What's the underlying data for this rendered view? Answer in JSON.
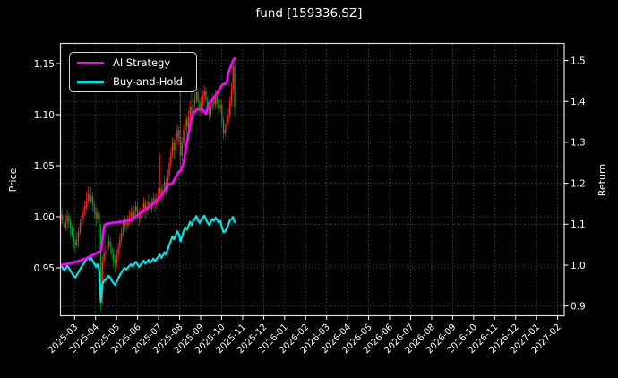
{
  "window": {
    "title": "fund [159336.SZ]"
  },
  "chart_data": {
    "type": "candlestick+line",
    "title": "fund [159336.SZ]",
    "ylabel_left": "Price",
    "ylabel_right": "Return",
    "grid": true,
    "legend_position": "upper-left",
    "x_tick_labels": [
      "2025-03",
      "2025-04",
      "2025-05",
      "2025-06",
      "2025-07",
      "2025-08",
      "2025-09",
      "2025-10",
      "2025-11",
      "2025-12",
      "2026-01",
      "2026-02",
      "2026-03",
      "2026-04",
      "2026-05",
      "2026-06",
      "2026-07",
      "2026-08",
      "2026-09",
      "2026-10",
      "2026-11",
      "2026-12",
      "2027-01",
      "2027-02"
    ],
    "price_ticks": [
      1.15,
      1.1,
      1.05,
      1.0,
      0.95
    ],
    "return_ticks": [
      1.5,
      1.4,
      1.3,
      1.2,
      1.1,
      1.0,
      0.9
    ],
    "ylim_left": [
      0.903,
      1.169
    ],
    "ylim_right": [
      0.876,
      1.544
    ],
    "colors": {
      "background": "#000000",
      "text": "#ffffff",
      "grid": "#8f8f8f",
      "spine": "#e0e0e0",
      "candle_up": "#fb2c2c",
      "candle_down": "#00a327",
      "ai_strategy": "#ff00ff",
      "buy_and_hold": "#00e5e6"
    },
    "candles_ohlc": [
      [
        0.998,
        1.006,
        0.993,
        1.002
      ],
      [
        1.002,
        1.009,
        0.992,
        0.996
      ],
      [
        0.996,
        1.001,
        0.981,
        0.989
      ],
      [
        0.989,
        1.003,
        0.986,
        0.994
      ],
      [
        0.994,
        1.007,
        0.987,
        1.001
      ],
      [
        1.001,
        1.004,
        0.989,
        0.995
      ],
      [
        0.995,
        0.999,
        0.98,
        0.988
      ],
      [
        0.988,
        0.992,
        0.979,
        0.982
      ],
      [
        0.982,
        0.991,
        0.968,
        0.976
      ],
      [
        0.976,
        0.979,
        0.965,
        0.972
      ],
      [
        0.972,
        0.985,
        0.969,
        0.978
      ],
      [
        0.978,
        0.989,
        0.97,
        0.985
      ],
      [
        0.985,
        0.998,
        0.982,
        0.992
      ],
      [
        0.992,
        1.003,
        0.988,
        0.998
      ],
      [
        0.998,
        1.01,
        0.995,
        1.004
      ],
      [
        1.004,
        1.016,
        1.001,
        1.01
      ],
      [
        1.01,
        1.025,
        1.007,
        1.016
      ],
      [
        1.016,
        1.03,
        1.013,
        1.022
      ],
      [
        1.022,
        1.027,
        1.008,
        1.015
      ],
      [
        1.015,
        1.029,
        1.012,
        1.02
      ],
      [
        1.02,
        1.024,
        1.005,
        1.012
      ],
      [
        1.012,
        1.016,
        0.998,
        1.005
      ],
      [
        1.005,
        1.01,
        0.991,
        0.998
      ],
      [
        0.998,
        1.009,
        0.994,
        1.004
      ],
      [
        1.004,
        1.008,
        0.968,
        0.99
      ],
      [
        0.99,
        0.993,
        0.908,
        0.92
      ],
      [
        0.92,
        0.961,
        0.914,
        0.956
      ],
      [
        0.956,
        0.969,
        0.95,
        0.964
      ],
      [
        0.964,
        0.973,
        0.958,
        0.966
      ],
      [
        0.966,
        0.978,
        0.962,
        0.972
      ],
      [
        0.972,
        0.983,
        0.968,
        0.976
      ],
      [
        0.976,
        0.98,
        0.963,
        0.97
      ],
      [
        0.97,
        0.974,
        0.957,
        0.964
      ],
      [
        0.964,
        0.969,
        0.951,
        0.958
      ],
      [
        0.958,
        0.962,
        0.946,
        0.954
      ],
      [
        0.954,
        0.968,
        0.95,
        0.962
      ],
      [
        0.962,
        0.975,
        0.958,
        0.97
      ],
      [
        0.97,
        0.984,
        0.966,
        0.978
      ],
      [
        0.978,
        0.99,
        0.974,
        0.984
      ],
      [
        0.984,
        0.996,
        0.98,
        0.99
      ],
      [
        0.99,
        1.001,
        0.986,
        0.995
      ],
      [
        0.995,
        0.999,
        0.985,
        0.992
      ],
      [
        0.992,
        1.002,
        0.988,
        0.996
      ],
      [
        0.996,
        1.006,
        0.992,
        1.0
      ],
      [
        1.0,
        1.01,
        0.996,
        1.004
      ],
      [
        1.004,
        1.008,
        0.992,
        0.999
      ],
      [
        0.999,
        1.011,
        0.995,
        1.005
      ],
      [
        1.005,
        1.016,
        1.001,
        1.01
      ],
      [
        1.01,
        1.014,
        0.997,
        1.004
      ],
      [
        1.004,
        1.008,
        0.991,
        0.998
      ],
      [
        0.998,
        1.009,
        0.994,
        1.003
      ],
      [
        1.003,
        1.014,
        0.999,
        1.008
      ],
      [
        1.008,
        1.019,
        1.004,
        1.013
      ],
      [
        1.013,
        1.017,
        0.999,
        1.006
      ],
      [
        1.006,
        1.016,
        1.002,
        1.01
      ],
      [
        1.01,
        1.021,
        1.006,
        1.015
      ],
      [
        1.015,
        1.019,
        1.002,
        1.008
      ],
      [
        1.008,
        1.019,
        1.004,
        1.013
      ],
      [
        1.013,
        1.024,
        1.009,
        1.018
      ],
      [
        1.018,
        1.022,
        1.005,
        1.012
      ],
      [
        1.012,
        1.023,
        1.008,
        1.017
      ],
      [
        1.017,
        1.028,
        1.013,
        1.022
      ],
      [
        1.022,
        1.062,
        1.016,
        1.028
      ],
      [
        1.028,
        1.032,
        1.012,
        1.02
      ],
      [
        1.02,
        1.032,
        1.016,
        1.026
      ],
      [
        1.026,
        1.04,
        1.022,
        1.034
      ],
      [
        1.034,
        1.038,
        1.02,
        1.028
      ],
      [
        1.028,
        1.046,
        1.024,
        1.04
      ],
      [
        1.04,
        1.058,
        1.036,
        1.052
      ],
      [
        1.052,
        1.068,
        1.048,
        1.062
      ],
      [
        1.062,
        1.078,
        1.058,
        1.072
      ],
      [
        1.072,
        1.076,
        1.056,
        1.065
      ],
      [
        1.065,
        1.081,
        1.061,
        1.075
      ],
      [
        1.075,
        1.091,
        1.071,
        1.085
      ],
      [
        1.085,
        1.089,
        1.07,
        1.078
      ],
      [
        1.078,
        1.156,
        1.048,
        1.06
      ],
      [
        1.06,
        1.078,
        1.054,
        1.072
      ],
      [
        1.072,
        1.091,
        1.068,
        1.085
      ],
      [
        1.085,
        1.101,
        1.081,
        1.095
      ],
      [
        1.095,
        1.099,
        1.08,
        1.088
      ],
      [
        1.088,
        1.104,
        1.084,
        1.098
      ],
      [
        1.098,
        1.114,
        1.094,
        1.108
      ],
      [
        1.108,
        1.152,
        1.09,
        1.1
      ],
      [
        1.1,
        1.116,
        1.096,
        1.11
      ],
      [
        1.11,
        1.121,
        1.106,
        1.115
      ],
      [
        1.115,
        1.128,
        1.111,
        1.122
      ],
      [
        1.122,
        1.126,
        1.106,
        1.112
      ],
      [
        1.112,
        1.116,
        1.098,
        1.105
      ],
      [
        1.105,
        1.118,
        1.101,
        1.112
      ],
      [
        1.112,
        1.124,
        1.108,
        1.118
      ],
      [
        1.118,
        1.129,
        1.114,
        1.123
      ],
      [
        1.123,
        1.127,
        1.108,
        1.114
      ],
      [
        1.114,
        1.118,
        1.1,
        1.106
      ],
      [
        1.106,
        1.11,
        1.094,
        1.1
      ],
      [
        1.1,
        1.114,
        1.096,
        1.108
      ],
      [
        1.108,
        1.121,
        1.104,
        1.115
      ],
      [
        1.115,
        1.119,
        1.104,
        1.11
      ],
      [
        1.11,
        1.124,
        1.106,
        1.118
      ],
      [
        1.118,
        1.122,
        1.106,
        1.112
      ],
      [
        1.112,
        1.116,
        1.1,
        1.106
      ],
      [
        1.106,
        1.116,
        1.102,
        1.11
      ],
      [
        1.11,
        1.114,
        1.088,
        1.094
      ],
      [
        1.094,
        1.098,
        1.076,
        1.082
      ],
      [
        1.082,
        1.091,
        1.078,
        1.085
      ],
      [
        1.085,
        1.098,
        1.081,
        1.092
      ],
      [
        1.092,
        1.106,
        1.088,
        1.1
      ],
      [
        1.1,
        1.118,
        1.096,
        1.112
      ],
      [
        1.112,
        1.131,
        1.108,
        1.125
      ],
      [
        1.125,
        1.155,
        1.12,
        1.147
      ],
      [
        1.147,
        1.151,
        1.098,
        1.108
      ]
    ],
    "series": [
      {
        "name": "AI Strategy",
        "axis": "right",
        "color": "#ff00ff",
        "values": [
          1.0,
          1.001,
          1.002,
          1.002,
          1.003,
          1.004,
          1.005,
          1.006,
          1.007,
          1.008,
          1.009,
          1.01,
          1.011,
          1.013,
          1.014,
          1.015,
          1.017,
          1.019,
          1.021,
          1.023,
          1.025,
          1.027,
          1.029,
          1.031,
          1.033,
          1.035,
          1.06,
          1.095,
          1.1,
          1.101,
          1.102,
          1.103,
          1.103,
          1.104,
          1.104,
          1.105,
          1.105,
          1.106,
          1.106,
          1.107,
          1.108,
          1.108,
          1.109,
          1.11,
          1.11,
          1.113,
          1.116,
          1.119,
          1.122,
          1.125,
          1.128,
          1.13,
          1.133,
          1.136,
          1.14,
          1.142,
          1.145,
          1.148,
          1.152,
          1.155,
          1.158,
          1.162,
          1.166,
          1.17,
          1.176,
          1.182,
          1.188,
          1.194,
          1.198,
          1.199,
          1.2,
          1.208,
          1.215,
          1.222,
          1.228,
          1.23,
          1.24,
          1.25,
          1.275,
          1.3,
          1.32,
          1.34,
          1.36,
          1.37,
          1.375,
          1.38,
          1.381,
          1.38,
          1.381,
          1.38,
          1.375,
          1.37,
          1.385,
          1.395,
          1.4,
          1.405,
          1.41,
          1.415,
          1.42,
          1.427,
          1.433,
          1.44,
          1.442,
          1.444,
          1.446,
          1.47,
          1.48,
          1.49,
          1.5,
          1.505
        ]
      },
      {
        "name": "Buy-and-Hold",
        "axis": "right",
        "color": "#00e5e6",
        "values": [
          1.0,
          0.994,
          0.987,
          0.992,
          0.999,
          0.993,
          0.986,
          0.98,
          0.974,
          0.97,
          0.976,
          0.983,
          0.99,
          0.996,
          1.002,
          1.008,
          1.014,
          1.02,
          1.013,
          1.018,
          1.01,
          1.003,
          0.996,
          1.002,
          0.988,
          0.91,
          0.954,
          0.962,
          0.964,
          0.97,
          0.974,
          0.968,
          0.962,
          0.956,
          0.952,
          0.96,
          0.968,
          0.976,
          0.982,
          0.988,
          0.993,
          0.99,
          0.994,
          0.998,
          1.002,
          0.997,
          1.003,
          1.008,
          1.002,
          0.996,
          1.001,
          1.006,
          1.011,
          1.004,
          1.008,
          1.013,
          1.006,
          1.011,
          1.016,
          1.01,
          1.015,
          1.02,
          1.026,
          1.018,
          1.024,
          1.032,
          1.026,
          1.038,
          1.05,
          1.06,
          1.07,
          1.063,
          1.073,
          1.083,
          1.076,
          1.058,
          1.07,
          1.083,
          1.093,
          1.086,
          1.096,
          1.106,
          1.098,
          1.108,
          1.113,
          1.12,
          1.11,
          1.103,
          1.11,
          1.116,
          1.121,
          1.112,
          1.104,
          1.098,
          1.106,
          1.113,
          1.108,
          1.116,
          1.11,
          1.104,
          1.108,
          1.092,
          1.08,
          1.083,
          1.09,
          1.098,
          1.11,
          1.112,
          1.118,
          1.105
        ]
      }
    ]
  }
}
